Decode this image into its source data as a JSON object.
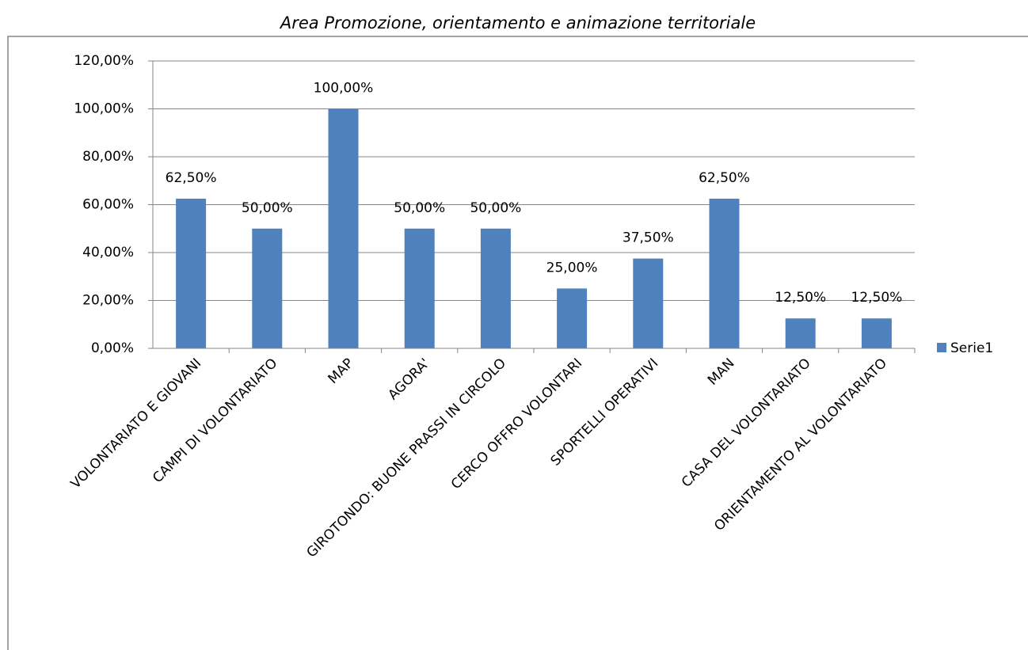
{
  "chart_data": {
    "type": "bar",
    "title": "Area Promozione, orientamento e animazione territoriale",
    "categories": [
      "VOLONTARIATO E GIOVANI",
      "CAMPI DI VOLONTARIATO",
      "MAP",
      "AGORA'",
      "GIROTONDO: BUONE PRASSI IN CIRCOLO",
      "CERCO OFFRO VOLONTARI",
      "SPORTELLI OPERATIVI",
      "MAN",
      "CASA DEL VOLONTARIATO",
      "ORIENTAMENTO AL VOLONTARIATO"
    ],
    "series": [
      {
        "name": "Serie1",
        "color": "#4f81bd",
        "values": [
          62.5,
          50,
          100,
          50,
          50,
          25,
          37.5,
          62.5,
          12.5,
          12.5
        ],
        "value_labels": [
          "62,50%",
          "50,00%",
          "100,00%",
          "50,00%",
          "50,00%",
          "25,00%",
          "37,50%",
          "62,50%",
          "12,50%",
          "12,50%"
        ]
      }
    ],
    "ylim": [
      0,
      120
    ],
    "yticks": [
      {
        "value": 0,
        "label": "0,00%"
      },
      {
        "value": 20,
        "label": "20,00%"
      },
      {
        "value": 40,
        "label": "40,00%"
      },
      {
        "value": 60,
        "label": "60,00%"
      },
      {
        "value": 80,
        "label": "80,00%"
      },
      {
        "value": 100,
        "label": "100,00%"
      },
      {
        "value": 120,
        "label": "120,00%"
      }
    ],
    "grid": true,
    "legend": "right"
  }
}
